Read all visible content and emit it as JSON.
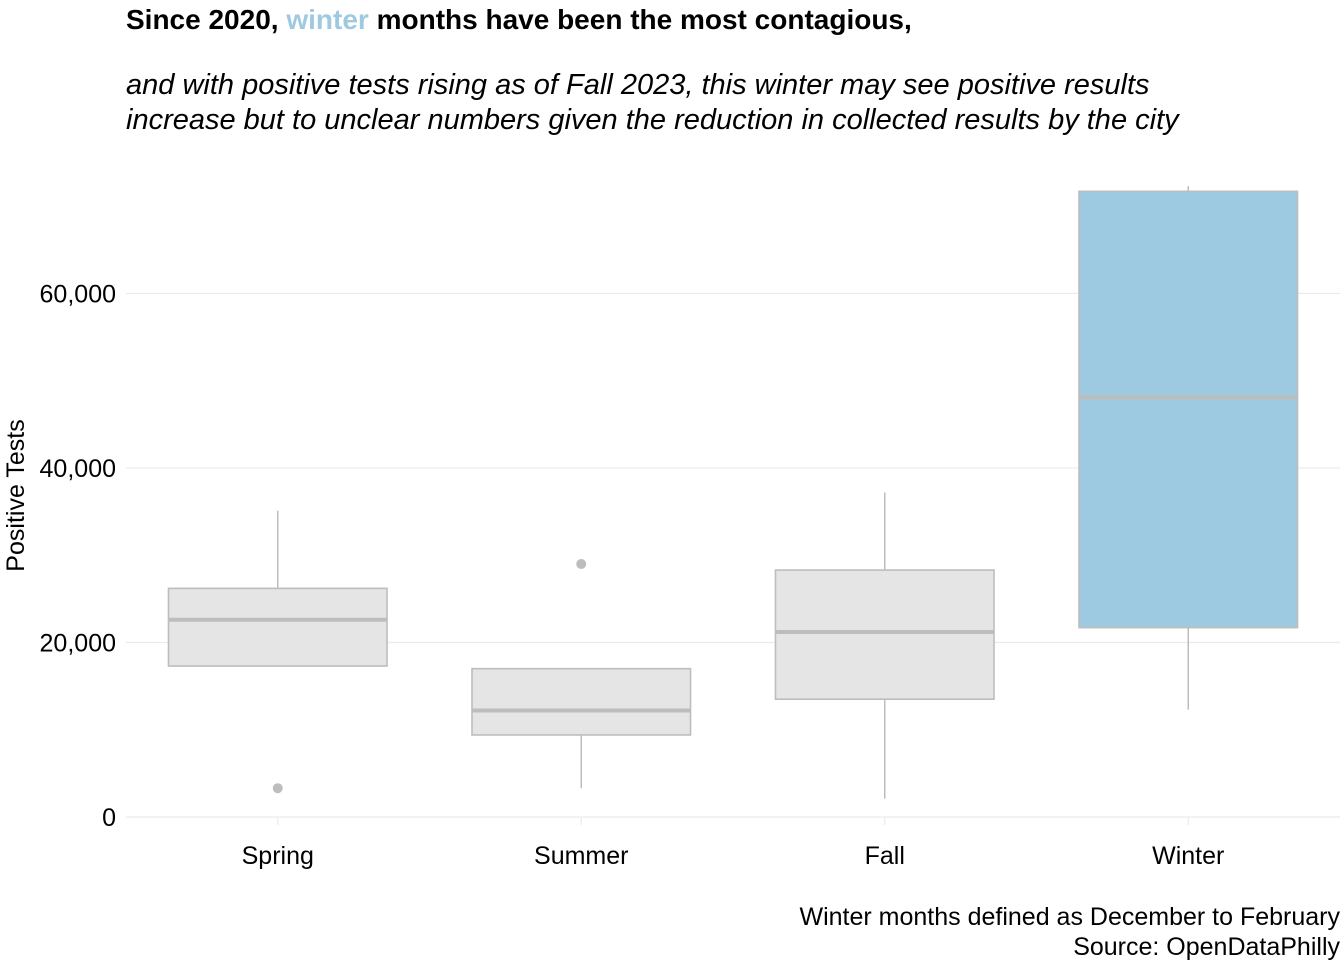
{
  "title": {
    "before": "Since 2020, ",
    "highlight": "winter",
    "after": " months have been the most contagious,",
    "highlight_color": "#9ecae1"
  },
  "subtitle": [
    "and with positive tests rising as of Fall 2023, this winter may see positive results",
    "increase but to unclear numbers given the reduction in collected results by the city"
  ],
  "caption": [
    "Winter months defined as December to February",
    "Source: OpenDataPhilly"
  ],
  "chart_data": {
    "type": "boxplot",
    "xlabel": "",
    "ylabel": "Positive Tests",
    "ylim": [
      0,
      73000
    ],
    "yticks": [
      0,
      20000,
      40000,
      60000
    ],
    "ytick_labels": [
      "0",
      "20,000",
      "40,000",
      "60,000"
    ],
    "grid": "horizontal",
    "categories": [
      "Spring",
      "Summer",
      "Fall",
      "Winter"
    ],
    "boxes": [
      {
        "category": "Spring",
        "whisker_low": 17300,
        "q1": 17300,
        "median": 22600,
        "q3": 26200,
        "whisker_high": 35100,
        "outliers": [
          3300
        ],
        "color": "#e5e5e5"
      },
      {
        "category": "Summer",
        "whisker_low": 3300,
        "q1": 9400,
        "median": 12200,
        "q3": 17000,
        "whisker_high": 17000,
        "outliers": [
          29000
        ],
        "color": "#e5e5e5"
      },
      {
        "category": "Fall",
        "whisker_low": 2100,
        "q1": 13500,
        "median": 21200,
        "q3": 28300,
        "whisker_high": 37200,
        "outliers": [],
        "color": "#e5e5e5"
      },
      {
        "category": "Winter",
        "whisker_low": 12300,
        "q1": 21700,
        "median": 48100,
        "q3": 71700,
        "whisker_high": 72300,
        "outliers": [],
        "color": "#9ecae1"
      }
    ],
    "line_color": "#bdbdbd"
  }
}
